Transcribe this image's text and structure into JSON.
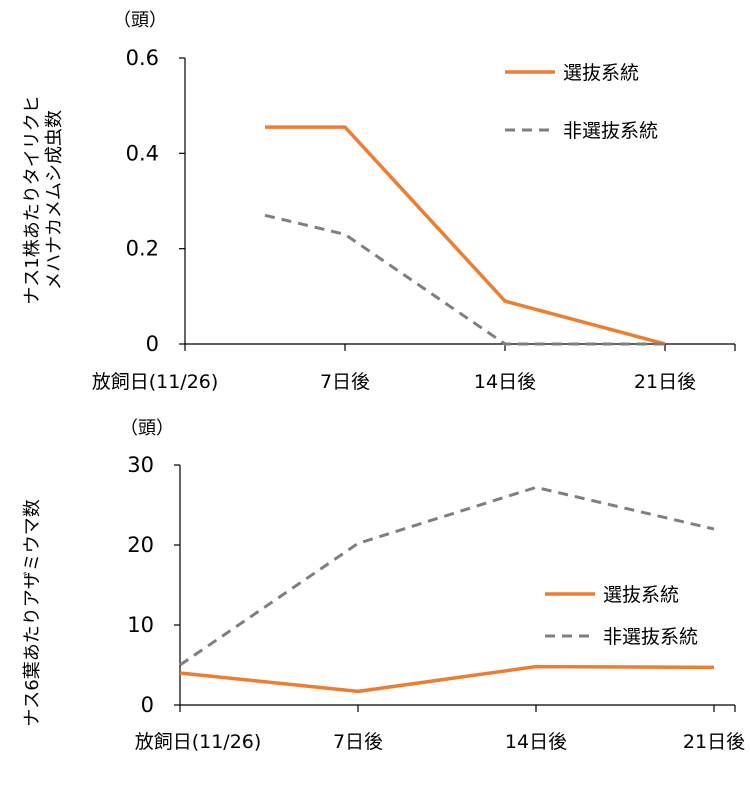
{
  "chart_data": [
    {
      "type": "line",
      "unit_label": "（頭）",
      "ylabel_lines": [
        "ナス1株あたりタイリクヒ",
        "メハナカメムシ成虫数"
      ],
      "categories": [
        "放飼日(11/26)",
        "7日後",
        "14日後",
        "21日後"
      ],
      "x": [
        0.5,
        1,
        2,
        3
      ],
      "ylim": [
        0,
        0.6
      ],
      "yticks": [
        0,
        0.2,
        0.4,
        0.6
      ],
      "ytick_labels": [
        "0",
        "0.2",
        "0.4",
        "0.6"
      ],
      "legend_position": "top-right",
      "series": [
        {
          "name": "選抜系統",
          "style": "solid",
          "color": "#ED7D31",
          "x": [
            0.5,
            1,
            2,
            3
          ],
          "values": [
            0.455,
            0.455,
            0.09,
            0
          ]
        },
        {
          "name": "非選抜系統",
          "style": "dashed",
          "color": "#7F7F7F",
          "x": [
            0.5,
            1,
            2,
            3
          ],
          "values": [
            0.27,
            0.23,
            0,
            0
          ]
        }
      ]
    },
    {
      "type": "line",
      "unit_label": "（頭）",
      "ylabel_lines": [
        "ナス6葉あたりアザミウマ数"
      ],
      "categories": [
        "放飼日(11/26)",
        "7日後",
        "14日後",
        "21日後"
      ],
      "x": [
        0,
        1,
        2,
        3
      ],
      "ylim": [
        0,
        30
      ],
      "yticks": [
        0,
        10,
        20,
        30
      ],
      "ytick_labels": [
        "0",
        "10",
        "20",
        "30"
      ],
      "legend_position": "bottom-right",
      "series": [
        {
          "name": "選抜系統",
          "style": "solid",
          "color": "#ED7D31",
          "x": [
            0,
            1,
            2,
            3
          ],
          "values": [
            4,
            1.7,
            4.8,
            4.7
          ]
        },
        {
          "name": "非選抜系統",
          "style": "dashed",
          "color": "#7F7F7F",
          "x": [
            0,
            1,
            2,
            3
          ],
          "values": [
            5,
            20.2,
            27.2,
            22
          ]
        }
      ]
    }
  ]
}
